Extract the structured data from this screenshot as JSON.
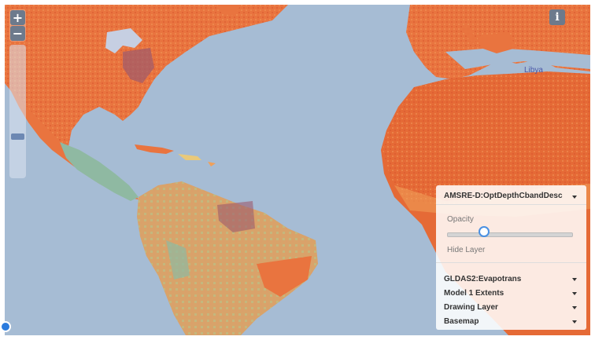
{
  "map": {
    "zoom_in": "+",
    "zoom_out": "−",
    "zoom_level": 0.7,
    "info_label": "i",
    "place_label": "Libya",
    "colors": {
      "ocean": "#a6bcd4",
      "hot": "#e8683a",
      "warm": "#f0a05a",
      "mild": "#e9c97a",
      "cool": "#8fb9a2",
      "dark": "#9c5a6c"
    }
  },
  "layer_panel": {
    "active_layer": "AMSRE-D:OptDepthCbandDesc",
    "opacity_label": "Opacity",
    "opacity_value": 0.3,
    "hide_label": "Hide Layer",
    "layers": [
      "GLDAS2:Evapotrans",
      "Model 1 Extents",
      "Drawing Layer",
      "Basemap"
    ]
  }
}
